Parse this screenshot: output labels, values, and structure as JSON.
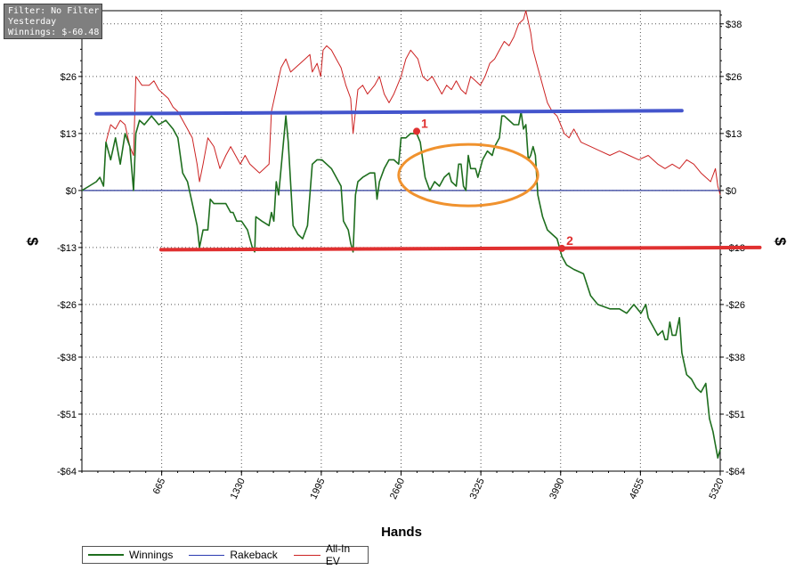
{
  "filter_panel": {
    "line1": "Filter: No Filter",
    "line2": "Yesterday",
    "line3": "Winnings: $-60.48"
  },
  "colors": {
    "winnings": "#1e6e1e",
    "rakeback": "#2a3ab0",
    "allin_ev": "#cc2222",
    "overlay_blue": "#4455cc",
    "overlay_red": "#e03030",
    "overlay_orange": "#f0922e"
  },
  "chart_data": {
    "type": "line",
    "xlabel": "Hands",
    "ylabel": "$",
    "xlim": [
      0,
      5320
    ],
    "ylim": [
      -64,
      41
    ],
    "x_ticks": [
      665,
      1330,
      1995,
      2660,
      3325,
      3990,
      4655,
      5320
    ],
    "y_ticks": [
      38,
      26,
      13,
      0,
      -13,
      -26,
      -38,
      -51,
      -64
    ],
    "y_tick_labels": [
      "$38",
      "$26",
      "$13",
      "$0",
      "-$13",
      "-$26",
      "-$38",
      "-$51",
      "-$64"
    ],
    "grid": true,
    "legend": "bottom-left",
    "series": [
      {
        "name": "Winnings",
        "points": [
          [
            0,
            0
          ],
          [
            60,
            1
          ],
          [
            120,
            2
          ],
          [
            150,
            3
          ],
          [
            180,
            1
          ],
          [
            200,
            11
          ],
          [
            240,
            7
          ],
          [
            280,
            12
          ],
          [
            320,
            6
          ],
          [
            360,
            13
          ],
          [
            400,
            10
          ],
          [
            430,
            0
          ],
          [
            450,
            13
          ],
          [
            480,
            16
          ],
          [
            520,
            15
          ],
          [
            580,
            17
          ],
          [
            640,
            15
          ],
          [
            700,
            16
          ],
          [
            760,
            14
          ],
          [
            800,
            12
          ],
          [
            840,
            4
          ],
          [
            880,
            2
          ],
          [
            920,
            -3
          ],
          [
            960,
            -8
          ],
          [
            980,
            -13
          ],
          [
            1010,
            -9
          ],
          [
            1050,
            -9
          ],
          [
            1070,
            -2
          ],
          [
            1100,
            -3
          ],
          [
            1150,
            -3
          ],
          [
            1200,
            -3
          ],
          [
            1240,
            -5
          ],
          [
            1260,
            -5
          ],
          [
            1290,
            -7
          ],
          [
            1330,
            -7
          ],
          [
            1380,
            -9
          ],
          [
            1420,
            -13
          ],
          [
            1440,
            -14
          ],
          [
            1450,
            -6
          ],
          [
            1500,
            -7
          ],
          [
            1560,
            -8
          ],
          [
            1580,
            -5
          ],
          [
            1600,
            -7
          ],
          [
            1620,
            2
          ],
          [
            1640,
            -1
          ],
          [
            1680,
            11
          ],
          [
            1700,
            17
          ],
          [
            1720,
            11
          ],
          [
            1760,
            -8
          ],
          [
            1800,
            -10
          ],
          [
            1840,
            -11
          ],
          [
            1880,
            -8
          ],
          [
            1920,
            6
          ],
          [
            1960,
            7
          ],
          [
            2000,
            7
          ],
          [
            2040,
            6
          ],
          [
            2080,
            5
          ],
          [
            2120,
            3
          ],
          [
            2160,
            1
          ],
          [
            2180,
            -7
          ],
          [
            2200,
            -8
          ],
          [
            2220,
            -9
          ],
          [
            2240,
            -12
          ],
          [
            2260,
            -14
          ],
          [
            2280,
            -1
          ],
          [
            2300,
            2
          ],
          [
            2340,
            3
          ],
          [
            2400,
            4
          ],
          [
            2440,
            4
          ],
          [
            2460,
            -2
          ],
          [
            2480,
            2
          ],
          [
            2520,
            5
          ],
          [
            2560,
            7
          ],
          [
            2600,
            7
          ],
          [
            2640,
            6
          ],
          [
            2660,
            12
          ],
          [
            2700,
            12
          ],
          [
            2740,
            13
          ],
          [
            2790,
            13
          ],
          [
            2820,
            11
          ],
          [
            2860,
            3
          ],
          [
            2900,
            0
          ],
          [
            2940,
            2
          ],
          [
            2980,
            1
          ],
          [
            3020,
            3
          ],
          [
            3060,
            4
          ],
          [
            3080,
            2
          ],
          [
            3120,
            1
          ],
          [
            3140,
            6
          ],
          [
            3160,
            6
          ],
          [
            3180,
            1
          ],
          [
            3200,
            0
          ],
          [
            3220,
            8
          ],
          [
            3240,
            5
          ],
          [
            3260,
            5
          ],
          [
            3280,
            5
          ],
          [
            3300,
            3
          ],
          [
            3340,
            7
          ],
          [
            3380,
            9
          ],
          [
            3420,
            8
          ],
          [
            3440,
            10
          ],
          [
            3480,
            12
          ],
          [
            3500,
            17
          ],
          [
            3520,
            17
          ],
          [
            3560,
            16
          ],
          [
            3600,
            15
          ],
          [
            3640,
            15
          ],
          [
            3660,
            18
          ],
          [
            3680,
            14
          ],
          [
            3700,
            15
          ],
          [
            3720,
            7
          ],
          [
            3740,
            8
          ],
          [
            3760,
            10
          ],
          [
            3780,
            8
          ],
          [
            3800,
            -1
          ],
          [
            3840,
            -6
          ],
          [
            3880,
            -9
          ],
          [
            3920,
            -10
          ],
          [
            3960,
            -11
          ],
          [
            3990,
            -14
          ],
          [
            4000,
            -15
          ],
          [
            4040,
            -17
          ],
          [
            4100,
            -18
          ],
          [
            4180,
            -19
          ],
          [
            4240,
            -24
          ],
          [
            4300,
            -26
          ],
          [
            4400,
            -27
          ],
          [
            4480,
            -27
          ],
          [
            4540,
            -28
          ],
          [
            4600,
            -26
          ],
          [
            4660,
            -28
          ],
          [
            4700,
            -26
          ],
          [
            4720,
            -29
          ],
          [
            4760,
            -31
          ],
          [
            4800,
            -33
          ],
          [
            4840,
            -32
          ],
          [
            4860,
            -34
          ],
          [
            4880,
            -34
          ],
          [
            4900,
            -30
          ],
          [
            4920,
            -33
          ],
          [
            4950,
            -33
          ],
          [
            4980,
            -29
          ],
          [
            5000,
            -37
          ],
          [
            5040,
            -42
          ],
          [
            5080,
            -43
          ],
          [
            5120,
            -45
          ],
          [
            5160,
            -46
          ],
          [
            5200,
            -44
          ],
          [
            5230,
            -52
          ],
          [
            5260,
            -55
          ],
          [
            5280,
            -58
          ],
          [
            5300,
            -61
          ],
          [
            5320,
            -59
          ]
        ]
      },
      {
        "name": "Rakeback",
        "points": [
          [
            0,
            0
          ],
          [
            5320,
            0
          ]
        ]
      },
      {
        "name": "All-In EV",
        "points": [
          [
            0,
            0
          ],
          [
            60,
            1
          ],
          [
            120,
            2
          ],
          [
            150,
            3
          ],
          [
            180,
            1
          ],
          [
            200,
            11
          ],
          [
            240,
            15
          ],
          [
            280,
            14
          ],
          [
            320,
            16
          ],
          [
            360,
            15
          ],
          [
            400,
            10
          ],
          [
            430,
            8
          ],
          [
            450,
            26
          ],
          [
            500,
            24
          ],
          [
            560,
            24
          ],
          [
            600,
            25
          ],
          [
            640,
            23
          ],
          [
            680,
            22
          ],
          [
            720,
            21
          ],
          [
            760,
            19
          ],
          [
            800,
            18
          ],
          [
            840,
            16
          ],
          [
            880,
            14
          ],
          [
            920,
            12
          ],
          [
            960,
            6
          ],
          [
            980,
            2
          ],
          [
            1010,
            6
          ],
          [
            1050,
            12
          ],
          [
            1100,
            10
          ],
          [
            1150,
            5
          ],
          [
            1200,
            8
          ],
          [
            1240,
            10
          ],
          [
            1280,
            8
          ],
          [
            1320,
            6
          ],
          [
            1360,
            8
          ],
          [
            1400,
            6
          ],
          [
            1440,
            5
          ],
          [
            1480,
            4
          ],
          [
            1520,
            5
          ],
          [
            1560,
            6
          ],
          [
            1580,
            18
          ],
          [
            1620,
            23
          ],
          [
            1660,
            28
          ],
          [
            1700,
            30
          ],
          [
            1740,
            27
          ],
          [
            1780,
            28
          ],
          [
            1820,
            29
          ],
          [
            1860,
            30
          ],
          [
            1900,
            31
          ],
          [
            1920,
            27
          ],
          [
            1960,
            29
          ],
          [
            1990,
            26
          ],
          [
            2010,
            32
          ],
          [
            2040,
            33
          ],
          [
            2080,
            32
          ],
          [
            2120,
            30
          ],
          [
            2160,
            28
          ],
          [
            2200,
            24
          ],
          [
            2240,
            21
          ],
          [
            2260,
            13
          ],
          [
            2280,
            18
          ],
          [
            2300,
            23
          ],
          [
            2340,
            24
          ],
          [
            2380,
            22
          ],
          [
            2440,
            24
          ],
          [
            2480,
            26
          ],
          [
            2520,
            22
          ],
          [
            2560,
            20
          ],
          [
            2600,
            22
          ],
          [
            2660,
            26
          ],
          [
            2700,
            30
          ],
          [
            2740,
            32
          ],
          [
            2800,
            30
          ],
          [
            2840,
            26
          ],
          [
            2880,
            25
          ],
          [
            2920,
            26
          ],
          [
            2960,
            24
          ],
          [
            3000,
            22
          ],
          [
            3040,
            24
          ],
          [
            3080,
            23
          ],
          [
            3120,
            25
          ],
          [
            3160,
            23
          ],
          [
            3200,
            22
          ],
          [
            3240,
            26
          ],
          [
            3280,
            25
          ],
          [
            3320,
            24
          ],
          [
            3360,
            26
          ],
          [
            3400,
            29
          ],
          [
            3440,
            30
          ],
          [
            3480,
            32
          ],
          [
            3520,
            34
          ],
          [
            3560,
            33
          ],
          [
            3600,
            35
          ],
          [
            3640,
            38
          ],
          [
            3680,
            39
          ],
          [
            3700,
            41
          ],
          [
            3740,
            36
          ],
          [
            3760,
            32
          ],
          [
            3800,
            28
          ],
          [
            3840,
            24
          ],
          [
            3880,
            20
          ],
          [
            3920,
            18
          ],
          [
            3960,
            17
          ],
          [
            3990,
            15
          ],
          [
            4020,
            13
          ],
          [
            4060,
            12
          ],
          [
            4100,
            14
          ],
          [
            4160,
            11
          ],
          [
            4240,
            10
          ],
          [
            4320,
            9
          ],
          [
            4400,
            8
          ],
          [
            4480,
            9
          ],
          [
            4560,
            8
          ],
          [
            4640,
            7
          ],
          [
            4720,
            8
          ],
          [
            4800,
            6
          ],
          [
            4860,
            5
          ],
          [
            4920,
            6
          ],
          [
            4980,
            5
          ],
          [
            5040,
            7
          ],
          [
            5100,
            6
          ],
          [
            5160,
            4
          ],
          [
            5200,
            3
          ],
          [
            5240,
            2
          ],
          [
            5280,
            5
          ],
          [
            5300,
            1
          ],
          [
            5320,
            -1
          ]
        ]
      }
    ],
    "overlays": [
      {
        "kind": "line",
        "color": "blue",
        "from": [
          120,
          17.5
        ],
        "to": [
          5000,
          18.2
        ]
      },
      {
        "kind": "line",
        "color": "red",
        "from": [
          660,
          -13.5
        ],
        "to": [
          5650,
          -13
        ]
      },
      {
        "kind": "ellipse",
        "color": "orange",
        "center": [
          3220,
          3.5
        ],
        "radii": [
          580,
          7
        ]
      },
      {
        "kind": "point",
        "label": "1",
        "at": [
          2790,
          13.5
        ]
      },
      {
        "kind": "point",
        "label": "2",
        "at": [
          4000,
          -13.2
        ]
      }
    ]
  }
}
